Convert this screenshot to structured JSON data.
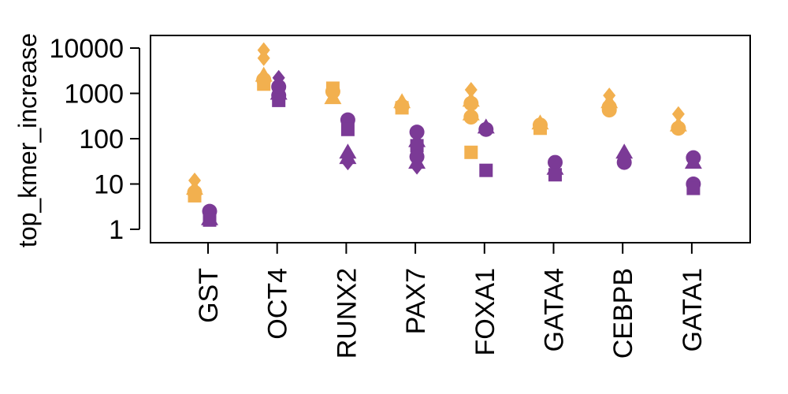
{
  "chart_data": {
    "type": "scatter",
    "ylabel": "top_kmer_increase",
    "xlabel": "",
    "title": "",
    "y_scale": "log10",
    "ylim": [
      1,
      10000
    ],
    "yticks": [
      1,
      10,
      100,
      1000,
      10000
    ],
    "ytick_labels": [
      "1",
      "10",
      "100",
      "1000",
      "10000"
    ],
    "categories": [
      "GST",
      "OCT4",
      "RUNX2",
      "PAX7",
      "FOXA1",
      "GATA4",
      "CEBPB",
      "GATA1"
    ],
    "grid": false,
    "legend": "none",
    "colors": {
      "orange": "#F2B04F",
      "purple": "#7B3A96"
    },
    "points": [
      {
        "category": "GST",
        "color": "orange",
        "shape": "diamond",
        "y": 12
      },
      {
        "category": "GST",
        "color": "orange",
        "shape": "triangle",
        "y": 8
      },
      {
        "category": "GST",
        "color": "orange",
        "shape": "circle",
        "y": 6.5
      },
      {
        "category": "GST",
        "color": "orange",
        "shape": "square",
        "y": 5.5
      },
      {
        "category": "GST",
        "color": "purple",
        "shape": "circle",
        "y": 2.5
      },
      {
        "category": "GST",
        "color": "purple",
        "shape": "triangle",
        "y": 1.7
      },
      {
        "category": "GST",
        "color": "purple",
        "shape": "square",
        "y": 1.6
      },
      {
        "category": "OCT4",
        "color": "orange",
        "shape": "diamond",
        "y": 9000
      },
      {
        "category": "OCT4",
        "color": "orange",
        "shape": "diamond",
        "y": 6000
      },
      {
        "category": "OCT4",
        "color": "orange",
        "shape": "triangle",
        "y": 2500
      },
      {
        "category": "OCT4",
        "color": "orange",
        "shape": "circle",
        "y": 2000
      },
      {
        "category": "OCT4",
        "color": "orange",
        "shape": "square",
        "y": 1600
      },
      {
        "category": "OCT4",
        "color": "purple",
        "shape": "diamond",
        "y": 2200
      },
      {
        "category": "OCT4",
        "color": "purple",
        "shape": "circle",
        "y": 1400
      },
      {
        "category": "OCT4",
        "color": "purple",
        "shape": "triangle",
        "y": 1000
      },
      {
        "category": "OCT4",
        "color": "purple",
        "shape": "circle",
        "y": 900
      },
      {
        "category": "OCT4",
        "color": "purple",
        "shape": "square",
        "y": 700
      },
      {
        "category": "RUNX2",
        "color": "orange",
        "shape": "square",
        "y": 1300
      },
      {
        "category": "RUNX2",
        "color": "orange",
        "shape": "circle",
        "y": 1100
      },
      {
        "category": "RUNX2",
        "color": "orange",
        "shape": "triangle",
        "y": 800
      },
      {
        "category": "RUNX2",
        "color": "purple",
        "shape": "circle",
        "y": 260
      },
      {
        "category": "RUNX2",
        "color": "purple",
        "shape": "square",
        "y": 160
      },
      {
        "category": "RUNX2",
        "color": "purple",
        "shape": "triangle",
        "y": 50
      },
      {
        "category": "RUNX2",
        "color": "purple",
        "shape": "triangle",
        "y": 38
      },
      {
        "category": "RUNX2",
        "color": "purple",
        "shape": "diamond",
        "y": 30
      },
      {
        "category": "PAX7",
        "color": "orange",
        "shape": "triangle",
        "y": 650
      },
      {
        "category": "PAX7",
        "color": "orange",
        "shape": "circle",
        "y": 520
      },
      {
        "category": "PAX7",
        "color": "orange",
        "shape": "square",
        "y": 480
      },
      {
        "category": "PAX7",
        "color": "purple",
        "shape": "circle",
        "y": 140
      },
      {
        "category": "PAX7",
        "color": "purple",
        "shape": "triangle",
        "y": 90
      },
      {
        "category": "PAX7",
        "color": "purple",
        "shape": "square",
        "y": 70
      },
      {
        "category": "PAX7",
        "color": "purple",
        "shape": "circle",
        "y": 40
      },
      {
        "category": "PAX7",
        "color": "purple",
        "shape": "triangle",
        "y": 30
      },
      {
        "category": "PAX7",
        "color": "purple",
        "shape": "diamond",
        "y": 24
      },
      {
        "category": "FOXA1",
        "color": "orange",
        "shape": "diamond",
        "y": 1200
      },
      {
        "category": "FOXA1",
        "color": "orange",
        "shape": "triangle",
        "y": 700
      },
      {
        "category": "FOXA1",
        "color": "orange",
        "shape": "circle",
        "y": 600
      },
      {
        "category": "FOXA1",
        "color": "orange",
        "shape": "triangle",
        "y": 350
      },
      {
        "category": "FOXA1",
        "color": "orange",
        "shape": "circle",
        "y": 300
      },
      {
        "category": "FOXA1",
        "color": "orange",
        "shape": "square",
        "y": 50
      },
      {
        "category": "FOXA1",
        "color": "purple",
        "shape": "triangle",
        "y": 180
      },
      {
        "category": "FOXA1",
        "color": "purple",
        "shape": "circle",
        "y": 160
      },
      {
        "category": "FOXA1",
        "color": "purple",
        "shape": "square",
        "y": 20
      },
      {
        "category": "GATA4",
        "color": "orange",
        "shape": "triangle",
        "y": 220
      },
      {
        "category": "GATA4",
        "color": "orange",
        "shape": "circle",
        "y": 200
      },
      {
        "category": "GATA4",
        "color": "orange",
        "shape": "square",
        "y": 170
      },
      {
        "category": "GATA4",
        "color": "purple",
        "shape": "circle",
        "y": 30
      },
      {
        "category": "GATA4",
        "color": "purple",
        "shape": "triangle",
        "y": 22
      },
      {
        "category": "GATA4",
        "color": "purple",
        "shape": "square",
        "y": 16
      },
      {
        "category": "CEBPB",
        "color": "orange",
        "shape": "diamond",
        "y": 900
      },
      {
        "category": "CEBPB",
        "color": "orange",
        "shape": "triangle",
        "y": 650
      },
      {
        "category": "CEBPB",
        "color": "orange",
        "shape": "circle",
        "y": 500
      },
      {
        "category": "CEBPB",
        "color": "orange",
        "shape": "circle",
        "y": 430
      },
      {
        "category": "CEBPB",
        "color": "purple",
        "shape": "triangle",
        "y": 50
      },
      {
        "category": "CEBPB",
        "color": "purple",
        "shape": "diamond",
        "y": 40
      },
      {
        "category": "CEBPB",
        "color": "purple",
        "shape": "circle",
        "y": 30
      },
      {
        "category": "GATA1",
        "color": "orange",
        "shape": "diamond",
        "y": 350
      },
      {
        "category": "GATA1",
        "color": "orange",
        "shape": "triangle",
        "y": 200
      },
      {
        "category": "GATA1",
        "color": "orange",
        "shape": "circle",
        "y": 170
      },
      {
        "category": "GATA1",
        "color": "purple",
        "shape": "circle",
        "y": 38
      },
      {
        "category": "GATA1",
        "color": "purple",
        "shape": "triangle",
        "y": 30
      },
      {
        "category": "GATA1",
        "color": "purple",
        "shape": "circle",
        "y": 10
      },
      {
        "category": "GATA1",
        "color": "purple",
        "shape": "square",
        "y": 8
      }
    ]
  }
}
